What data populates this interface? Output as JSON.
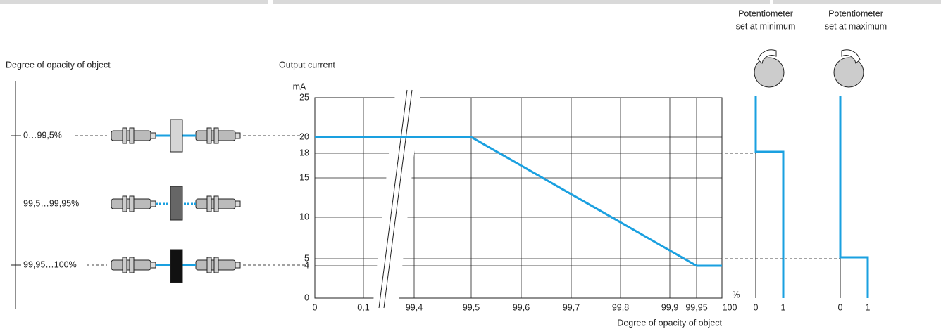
{
  "left": {
    "title": "Degree of opacity of object",
    "rows": [
      "0…99,5%",
      "99,5…99,95%",
      "99,95…100%"
    ]
  },
  "chart": {
    "title": "Output current",
    "y_unit": "mA",
    "yticks": [
      "0",
      "4",
      "5",
      "10",
      "15",
      "18",
      "20",
      "25"
    ],
    "x_unit": "%",
    "xticks": [
      "0",
      "0,1",
      "99,4",
      "99,5",
      "99,6",
      "99,7",
      "99,8",
      "99,9",
      "99,95",
      "100"
    ],
    "x_label": "Degree of opacity of object"
  },
  "pots": [
    {
      "label": [
        "Potentiometer",
        "set at minimum"
      ],
      "xticks": [
        "0",
        "1"
      ]
    },
    {
      "label": [
        "Potentiometer",
        "set at maximum"
      ],
      "xticks": [
        "0",
        "1"
      ]
    }
  ]
}
